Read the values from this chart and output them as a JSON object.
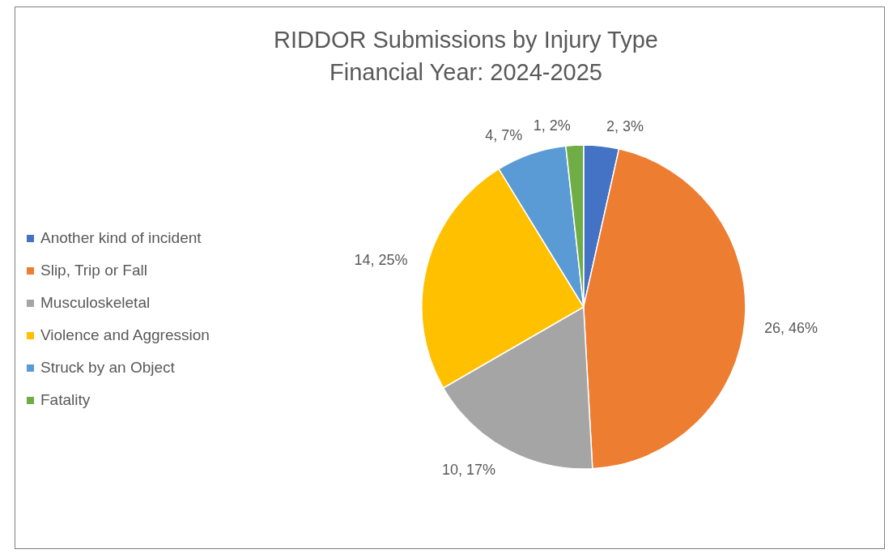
{
  "chart_data": {
    "type": "pie",
    "title": "RIDDOR Submissions by Injury Type",
    "subtitle": "Financial Year: 2024-2025",
    "categories": [
      "Another kind of incident",
      "Slip, Trip or Fall",
      "Musculoskeletal",
      "Violence and Aggression",
      "Struck by an Object",
      "Fatality"
    ],
    "values": [
      2,
      26,
      10,
      14,
      4,
      1
    ],
    "colors": [
      "#4472c4",
      "#ed7d31",
      "#a5a5a5",
      "#ffc000",
      "#5b9bd5",
      "#70ad47"
    ],
    "value_labels": [
      "2, 3%",
      "26, 46%",
      "10, 17%",
      "14, 25%",
      "4, 7%",
      "1, 2%"
    ],
    "legend": "left"
  }
}
